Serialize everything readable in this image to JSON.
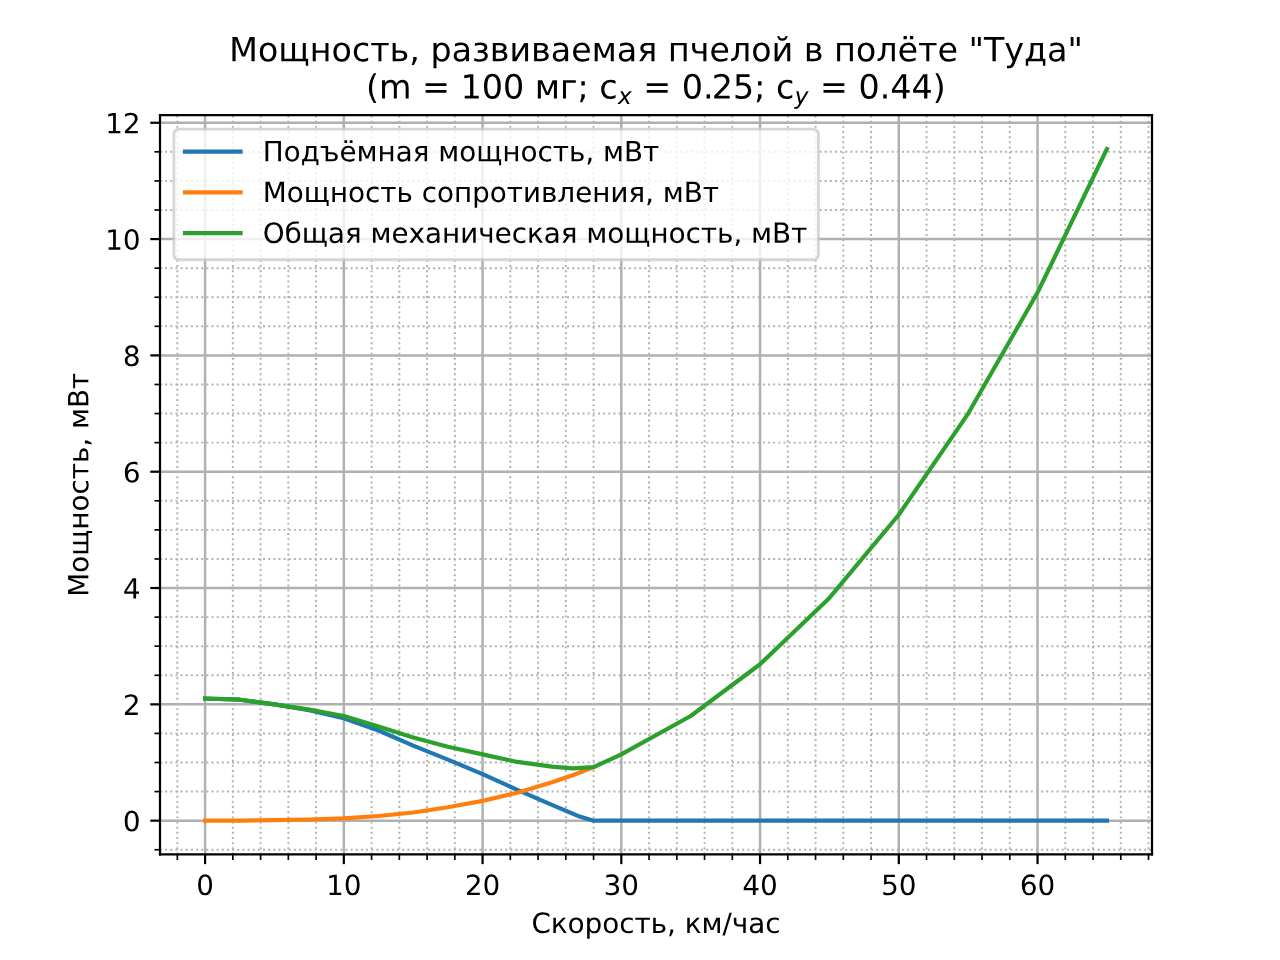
{
  "chart_data": {
    "type": "line",
    "title": "Мощность, развиваемая пчелой в полёте \"Туда\"\n(m = 100 мг; c$_{x}$ = 0.25; c$_{y}$ = 0.44)",
    "xlabel": "Скорость, км/час",
    "ylabel": "Мощность, мВт",
    "series": [
      {
        "name": "Подъёмная мощность, мВт",
        "color": "#1f77b4",
        "x": [
          0,
          2.5,
          5,
          7.5,
          10,
          12.5,
          15,
          17.5,
          20,
          22.5,
          25,
          27,
          28,
          30,
          35,
          40,
          45,
          50,
          55,
          60,
          65
        ],
        "values": [
          2.1,
          2.08,
          2.0,
          1.9,
          1.76,
          1.55,
          1.29,
          1.05,
          0.8,
          0.53,
          0.27,
          0.07,
          0,
          0,
          0,
          0,
          0,
          0,
          0,
          0,
          0
        ]
      },
      {
        "name": "Мощность сопротивления, мВт",
        "color": "#ff7f0e",
        "x": [
          0,
          2.5,
          5,
          7.5,
          10,
          12.5,
          15,
          17.5,
          20,
          22.5,
          25,
          26.5,
          28
        ],
        "values": [
          0,
          0,
          0.01,
          0.02,
          0.04,
          0.08,
          0.14,
          0.23,
          0.34,
          0.48,
          0.66,
          0.78,
          0.92
        ]
      },
      {
        "name": "Общая механическая мощность, мВт",
        "color": "#2ca02c",
        "x": [
          0,
          2.5,
          5,
          7.5,
          10,
          12.5,
          15,
          17.5,
          20,
          22.5,
          25,
          26.5,
          28,
          30,
          35,
          40,
          45,
          50,
          55,
          60,
          65
        ],
        "values": [
          2.1,
          2.08,
          2.0,
          1.91,
          1.8,
          1.62,
          1.43,
          1.27,
          1.14,
          1.01,
          0.93,
          0.9,
          0.92,
          1.14,
          1.8,
          2.69,
          3.83,
          5.26,
          7.0,
          9.08,
          11.55
        ]
      }
    ],
    "xlim": [
      -3.25,
      68.25
    ],
    "ylim": [
      -0.58,
      12.13
    ],
    "xticks": [
      0,
      10,
      20,
      30,
      40,
      50,
      60
    ],
    "yticks": [
      0,
      2,
      4,
      6,
      8,
      10,
      12
    ],
    "grid": true,
    "legend": "top left",
    "marker": "none",
    "line_style": "solid"
  }
}
